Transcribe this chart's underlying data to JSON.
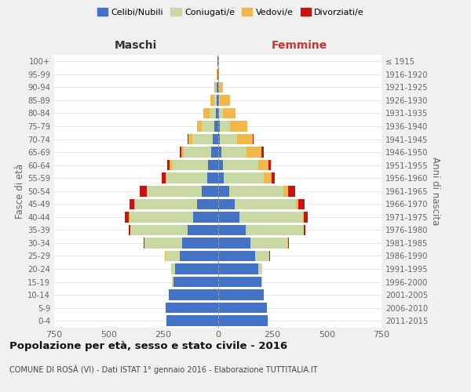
{
  "age_groups": [
    "0-4",
    "5-9",
    "10-14",
    "15-19",
    "20-24",
    "25-29",
    "30-34",
    "35-39",
    "40-44",
    "45-49",
    "50-54",
    "55-59",
    "60-64",
    "65-69",
    "70-74",
    "75-79",
    "80-84",
    "85-89",
    "90-94",
    "95-99",
    "100+"
  ],
  "birth_years": [
    "2011-2015",
    "2006-2010",
    "2001-2005",
    "1996-2000",
    "1991-1995",
    "1986-1990",
    "1981-1985",
    "1976-1980",
    "1971-1975",
    "1966-1970",
    "1961-1965",
    "1956-1960",
    "1951-1955",
    "1946-1950",
    "1941-1945",
    "1936-1940",
    "1931-1935",
    "1926-1930",
    "1921-1925",
    "1916-1920",
    "≤ 1915"
  ],
  "colors": {
    "celibi": "#4472C4",
    "coniugati": "#c8d9a4",
    "vedovi": "#f0b84a",
    "divorziati": "#cc1111"
  },
  "males": {
    "celibi": [
      235,
      240,
      225,
      205,
      195,
      175,
      165,
      140,
      115,
      95,
      75,
      50,
      45,
      30,
      22,
      15,
      10,
      6,
      4,
      2,
      2
    ],
    "coniugati": [
      0,
      0,
      0,
      5,
      18,
      65,
      170,
      260,
      290,
      285,
      250,
      185,
      165,
      125,
      95,
      58,
      28,
      10,
      4,
      0,
      0
    ],
    "vedovi": [
      0,
      0,
      0,
      0,
      0,
      2,
      2,
      1,
      2,
      3,
      2,
      5,
      10,
      12,
      18,
      22,
      28,
      18,
      8,
      2,
      0
    ],
    "divorziati": [
      0,
      0,
      0,
      0,
      0,
      2,
      2,
      8,
      18,
      22,
      32,
      18,
      12,
      8,
      5,
      2,
      0,
      0,
      0,
      0,
      0
    ]
  },
  "females": {
    "celibi": [
      230,
      225,
      210,
      200,
      185,
      170,
      150,
      128,
      100,
      78,
      52,
      28,
      22,
      15,
      10,
      8,
      6,
      4,
      3,
      2,
      2
    ],
    "coniugati": [
      0,
      0,
      0,
      5,
      18,
      65,
      170,
      265,
      290,
      280,
      250,
      182,
      162,
      118,
      78,
      48,
      16,
      6,
      2,
      0,
      0
    ],
    "vedovi": [
      0,
      0,
      0,
      0,
      0,
      2,
      2,
      2,
      5,
      10,
      20,
      35,
      48,
      68,
      72,
      78,
      58,
      44,
      18,
      5,
      0
    ],
    "divorziati": [
      0,
      0,
      0,
      0,
      0,
      2,
      2,
      5,
      18,
      28,
      32,
      15,
      12,
      8,
      5,
      2,
      0,
      0,
      0,
      0,
      0
    ]
  },
  "xlim": 750,
  "title": "Popolazione per età, sesso e stato civile - 2016",
  "subtitle": "COMUNE DI ROSÀ (VI) - Dati ISTAT 1° gennaio 2016 - Elaborazione TUTTITALIA.IT",
  "ylabel_left": "Fasce di età",
  "ylabel_right": "Anni di nascita",
  "xlabel_left": "Maschi",
  "xlabel_right": "Femmine",
  "bg_color": "#f0f0f0",
  "plot_bg": "#ffffff"
}
